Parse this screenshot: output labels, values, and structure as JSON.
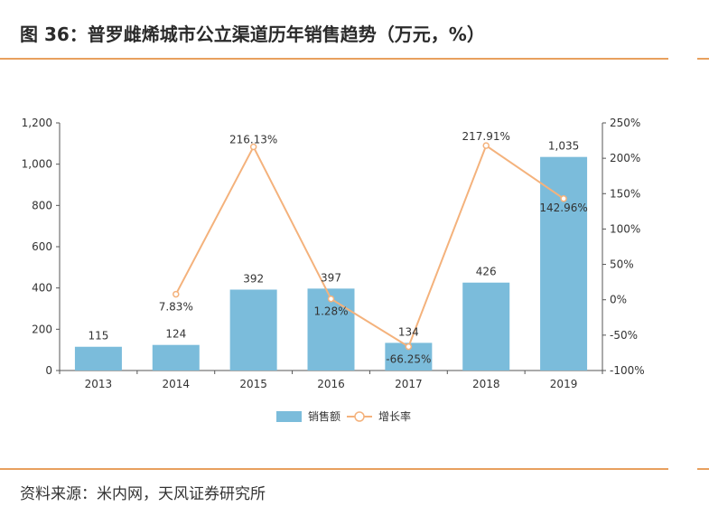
{
  "figure_title": "图 36：普罗雌烯城市公立渠道历年销售趋势（万元，%）",
  "source_note": "资料来源：米内网，天风证券研究所",
  "colors": {
    "bar": "#7bbcdb",
    "line": "#f4b27c",
    "rule": "#e8a05e",
    "axis": "#555555",
    "text": "#333333"
  },
  "chart_data": {
    "type": "bar",
    "categories": [
      "2013",
      "2014",
      "2015",
      "2016",
      "2017",
      "2018",
      "2019"
    ],
    "series": [
      {
        "name": "销售额",
        "type": "bar",
        "axis": "left",
        "values": [
          115,
          124,
          392,
          397,
          134,
          426,
          1035
        ],
        "labels": [
          "115",
          "124",
          "392",
          "397",
          "134",
          "426",
          "1,035"
        ]
      },
      {
        "name": "增长率",
        "type": "line",
        "axis": "right",
        "values": [
          null,
          7.83,
          216.13,
          1.28,
          -66.25,
          217.91,
          142.96
        ],
        "labels": [
          "",
          "7.83%",
          "216.13%",
          "1.28%",
          "-66.25%",
          "217.91%",
          "142.96%"
        ]
      }
    ],
    "y_left": {
      "min": 0,
      "max": 1200,
      "ticks": [
        "0",
        "200",
        "400",
        "600",
        "800",
        "1,000",
        "1,200"
      ]
    },
    "y_right": {
      "min": -100,
      "max": 250,
      "ticks": [
        "-100%",
        "-50%",
        "0%",
        "50%",
        "100%",
        "150%",
        "200%",
        "250%"
      ]
    },
    "legend_position": "bottom-center",
    "grid": false
  }
}
